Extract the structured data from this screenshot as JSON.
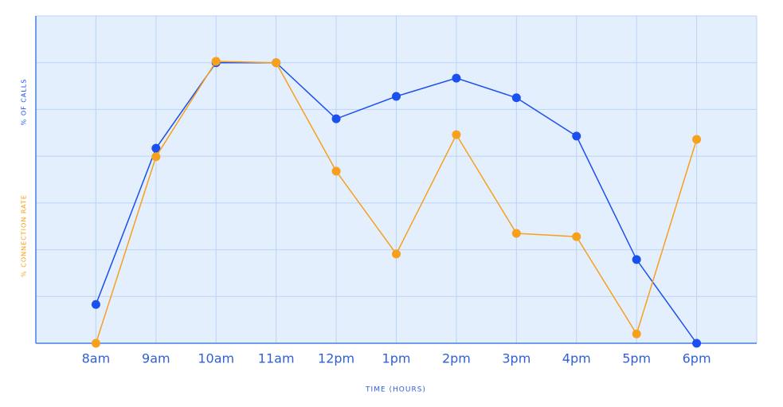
{
  "chart_data": {
    "type": "line",
    "x_label": "TIME (HOURS)",
    "categories": [
      "8am",
      "9am",
      "10am",
      "11am",
      "12pm",
      "1pm",
      "2pm",
      "3pm",
      "4pm",
      "5pm",
      "6pm"
    ],
    "series": [
      {
        "name": "% OF CALLS",
        "color": "#1a4ff0",
        "values": [
          0.83,
          4.17,
          6.0,
          6.0,
          4.8,
          5.28,
          5.67,
          5.25,
          4.43,
          1.79,
          0
        ]
      },
      {
        "name": "% CONNECTION RATE",
        "color": "#f7a01b",
        "values": [
          0,
          3.99,
          6.03,
          6.0,
          3.68,
          1.91,
          4.46,
          2.35,
          2.28,
          0.2,
          4.36
        ]
      }
    ],
    "ylim": [
      0,
      7
    ],
    "yticks": [
      0,
      1,
      2,
      3,
      4,
      5,
      6,
      7
    ],
    "grid": true
  }
}
